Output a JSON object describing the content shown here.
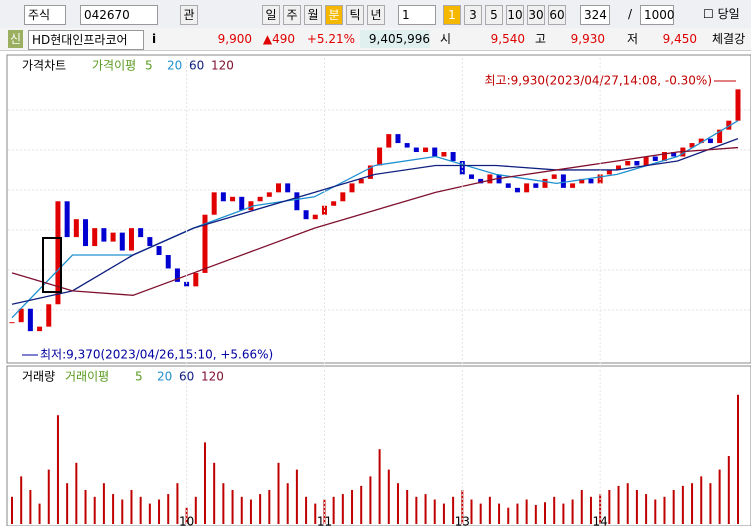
{
  "toolbar": {
    "market": "주식",
    "code": "042670",
    "buttons": [
      "관"
    ],
    "periods": [
      "일",
      "주",
      "월",
      "분",
      "틱",
      "년"
    ],
    "active_period": "분",
    "interval": "1",
    "intervals": [
      "1",
      "3",
      "5",
      "10",
      "30",
      "60"
    ],
    "active_interval": "1",
    "count": "324",
    "slash": "/",
    "max_count": "1000",
    "today": "당일"
  },
  "quote": {
    "badge": "신",
    "name": "HD현대인프라코어",
    "info": "i",
    "price": "9,900",
    "change": "▲490",
    "rate": "+5.21%",
    "volume": "9,405,996",
    "open_label": "시",
    "open": "9,540",
    "high_label": "고",
    "high": "9,930",
    "low_label": "저",
    "low": "9,450",
    "strength": "체결강"
  },
  "chart_data": [
    {
      "type": "candlestick",
      "title": "가격차트",
      "ma_label": "가격이평",
      "ma_periods": [
        "5",
        "20",
        "60",
        "120"
      ],
      "annotations": {
        "high": "최고:9,930(2023/04/27,14:08, -0.30%)",
        "low": "최저:9,370(2023/04/26,15:10, +5.66%)"
      },
      "ylim": [
        9330,
        10000
      ],
      "close": [
        9410,
        9440,
        9390,
        9400,
        9450,
        9680,
        9600,
        9640,
        9580,
        9620,
        9590,
        9610,
        9570,
        9620,
        9600,
        9580,
        9560,
        9530,
        9500,
        9490,
        9520,
        9650,
        9700,
        9680,
        9690,
        9660,
        9680,
        9690,
        9700,
        9720,
        9700,
        9660,
        9640,
        9650,
        9670,
        9680,
        9700,
        9720,
        9730,
        9760,
        9800,
        9830,
        9810,
        9800,
        9790,
        9800,
        9780,
        9790,
        9770,
        9740,
        9730,
        9720,
        9740,
        9720,
        9710,
        9700,
        9720,
        9710,
        9730,
        9740,
        9710,
        9720,
        9730,
        9720,
        9740,
        9750,
        9760,
        9770,
        9760,
        9780,
        9770,
        9790,
        9780,
        9800,
        9810,
        9820,
        9810,
        9840,
        9860,
        9930
      ],
      "up_color": "#e00000",
      "down_color": "#0000d0",
      "series": [
        {
          "name": "20",
          "color": "#1e90d0",
          "values": [
            9420,
            9560,
            9560,
            9620,
            9670,
            9690,
            9760,
            9780,
            9740,
            9720,
            9740,
            9780,
            9860
          ]
        },
        {
          "name": "60",
          "color": "#102080",
          "values": [
            9450,
            9480,
            9560,
            9620,
            9660,
            9700,
            9740,
            9760,
            9760,
            9750,
            9750,
            9770,
            9820
          ]
        },
        {
          "name": "120",
          "color": "#801030",
          "values": [
            9520,
            9480,
            9470,
            9520,
            9570,
            9620,
            9660,
            9700,
            9730,
            9750,
            9770,
            9790,
            9800
          ]
        }
      ]
    },
    {
      "type": "bar",
      "title": "거래량",
      "ma_label": "거래이평",
      "ma_periods": [
        "5",
        "20",
        "60",
        "120"
      ],
      "ylim": [
        0,
        100
      ],
      "color": "#c00000",
      "values": [
        20,
        35,
        25,
        15,
        40,
        80,
        30,
        45,
        25,
        20,
        30,
        22,
        18,
        25,
        20,
        15,
        18,
        22,
        30,
        12,
        20,
        60,
        45,
        30,
        25,
        20,
        18,
        22,
        25,
        45,
        30,
        40,
        20,
        15,
        18,
        20,
        22,
        25,
        28,
        35,
        55,
        40,
        30,
        25,
        20,
        22,
        18,
        15,
        20,
        25,
        18,
        15,
        20,
        15,
        12,
        15,
        18,
        14,
        16,
        20,
        15,
        18,
        25,
        20,
        22,
        25,
        28,
        30,
        25,
        22,
        18,
        20,
        25,
        28,
        30,
        35,
        30,
        40,
        50,
        95
      ],
      "xticks": [
        {
          "value": 19,
          "label": "10"
        },
        {
          "value": 34,
          "label": "11"
        },
        {
          "value": 49,
          "label": "13"
        },
        {
          "value": 64,
          "label": "14"
        }
      ]
    }
  ]
}
